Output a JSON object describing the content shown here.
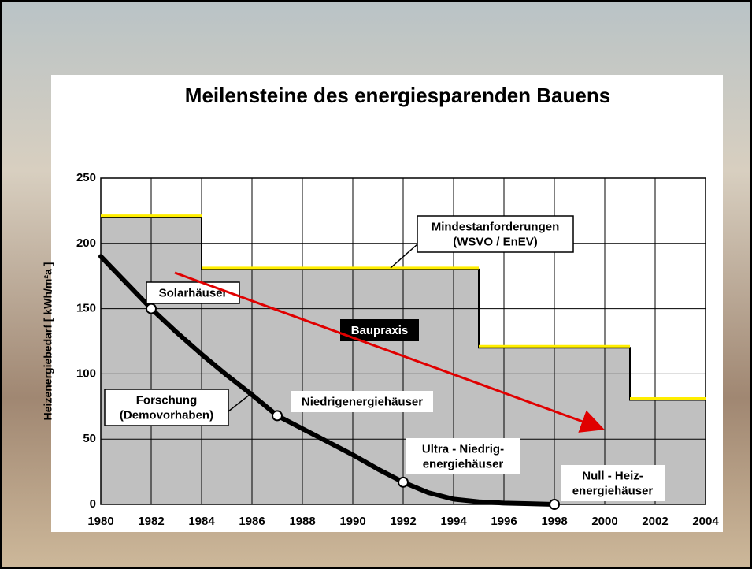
{
  "chart_data": {
    "type": "step-and-curve",
    "title": "Meilensteine des energiesparenden Bauens",
    "y_label": "Heizenergiebedarf  [ kWh/m²a ]",
    "xlim": [
      1980,
      2004
    ],
    "xticks": [
      1980,
      1982,
      1984,
      1986,
      1988,
      1990,
      1992,
      1994,
      1996,
      1998,
      2000,
      2002,
      2004
    ],
    "ylim": [
      0,
      250
    ],
    "yticks": [
      0,
      50,
      100,
      150,
      200,
      250
    ],
    "grid": true,
    "steps": {
      "label": [
        "Mindestanforderungen",
        "(WSVO / EnEV)"
      ],
      "color": "#ffee00",
      "fill": "#c0c0c0",
      "x": [
        1980,
        1984,
        1995,
        2001
      ],
      "values": [
        220,
        180,
        120,
        80
      ]
    },
    "curve": {
      "label": [
        "Forschung",
        "(Demovorhaben)"
      ],
      "color": "#000000",
      "x": [
        1980,
        1981,
        1982,
        1983,
        1984,
        1985,
        1986,
        1987,
        1988,
        1989,
        1990,
        1991,
        1992,
        1993,
        1994,
        1995,
        1996,
        1997,
        1998
      ],
      "values": [
        190,
        170,
        150,
        132,
        115,
        99,
        84,
        68,
        58,
        48,
        38,
        27,
        17,
        9,
        4,
        2,
        1,
        0.5,
        0
      ]
    },
    "milestones": [
      {
        "x": 1982,
        "value": 150,
        "label": [
          "Solarhäuser"
        ]
      },
      {
        "x": 1987,
        "value": 68,
        "label": [
          "Niedrigenergiehäuser"
        ]
      },
      {
        "x": 1992,
        "value": 17,
        "label": [
          "Ultra - Niedrig-",
          "energiehäuser"
        ]
      },
      {
        "x": 1998,
        "value": 0,
        "label": [
          "Null - Heiz-",
          "energiehäuser"
        ]
      }
    ],
    "practice_label": "Baupraxis"
  }
}
